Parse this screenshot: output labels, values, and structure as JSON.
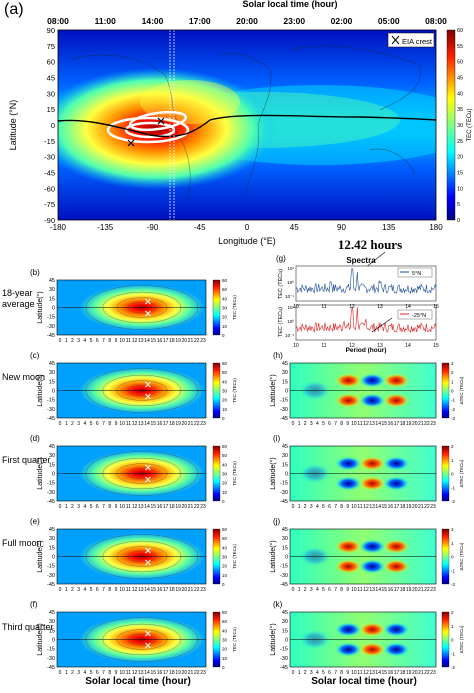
{
  "figure": {
    "panel_a_letter": "(a)",
    "top_axis_title": "Solar local time (hour)",
    "top_ticks": [
      "08:00",
      "11:00",
      "14:00",
      "17:00",
      "20:00",
      "23:00",
      "02:00",
      "05:00",
      "08:00"
    ],
    "lat_label_a": "Latitude (°N)",
    "lon_label": "Longitude (°E)",
    "lon_ticks": [
      "-180",
      "-135",
      "-90",
      "-45",
      "0",
      "45",
      "90",
      "135",
      "180"
    ],
    "lat_ticks_a": [
      "90",
      "75",
      "60",
      "45",
      "30",
      "15",
      "0",
      "-15",
      "-30",
      "-45",
      "-60",
      "-75",
      "-90"
    ],
    "legend_eia": "EIA crest",
    "cbar_a_label": "TEC (TECu)",
    "cbar_a_ticks": [
      "60",
      "55",
      "50",
      "45",
      "40",
      "35",
      "30",
      "25",
      "20",
      "15",
      "10",
      "5",
      "0"
    ],
    "annotation_hours": "12.42 hours",
    "annotation_spectra": "Spectra",
    "panel_letters_left": [
      "(b)",
      "(c)",
      "(d)",
      "(e)",
      "(f)"
    ],
    "panel_letters_right": [
      "(g)",
      "(h)",
      "(i)",
      "(j)",
      "(k)"
    ],
    "row_labels": [
      "18-year average",
      "New moon",
      "First quarter",
      "Full moon",
      "Third quarter"
    ],
    "lat_label_small": "Latitude(°)",
    "lat_ticks_small": [
      "45",
      "30",
      "15",
      "0",
      "-15",
      "-30",
      "-45"
    ],
    "slt_ticks": [
      "0",
      "1",
      "2",
      "3",
      "4",
      "5",
      "6",
      "7",
      "8",
      "9",
      "10",
      "11",
      "12",
      "13",
      "14",
      "15",
      "16",
      "17",
      "18",
      "19",
      "20",
      "21",
      "22",
      "23"
    ],
    "slt_label": "Solar local time (hour)",
    "cbar_small_label": "TEC (TECu)",
    "cbar_small_ticks": [
      "60",
      "50",
      "40",
      "30",
      "20",
      "10",
      "0"
    ],
    "dtec_label": "ΔTEC (TECu)",
    "cbar_h_ticks": [
      "3",
      "2",
      "1",
      "0",
      "-1",
      "-2",
      "-3"
    ],
    "cbar_ijk_ticks": [
      "2",
      "1",
      "0",
      "-1",
      "-2"
    ],
    "spectra_ylabel": "TEC (TECu)",
    "spectra_yticks": [
      "10¹",
      "10⁰",
      "10⁻¹"
    ],
    "spectra_xticks": [
      "10",
      "11",
      "12",
      "13",
      "14",
      "15"
    ],
    "period_label": "Period (hour)",
    "legend_5n": "5°N",
    "legend_m25n": "-25°N"
  },
  "colors": {
    "jet": [
      "#00007f",
      "#0000ff",
      "#007fff",
      "#00ffff",
      "#7fff7f",
      "#ffff00",
      "#ff7f00",
      "#ff0000",
      "#7f0000"
    ],
    "spectra_blue": "#1f4e9c",
    "spectra_red": "#e02020"
  }
}
